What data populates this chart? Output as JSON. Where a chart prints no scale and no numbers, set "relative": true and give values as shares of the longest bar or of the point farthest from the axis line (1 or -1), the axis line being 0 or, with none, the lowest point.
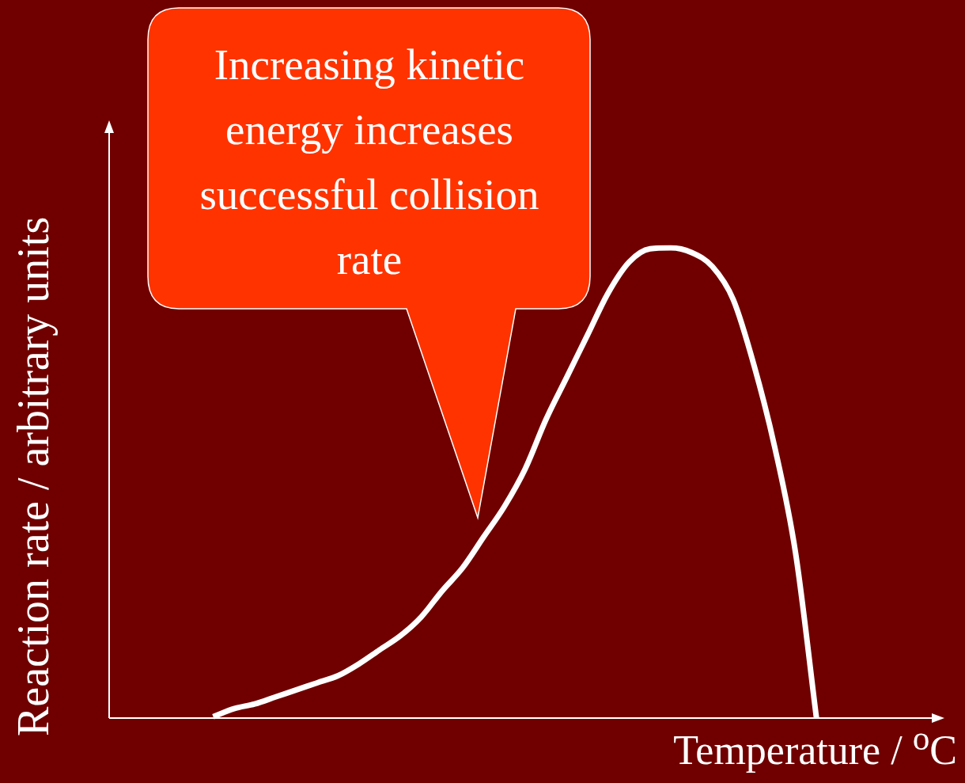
{
  "chart_data": {
    "type": "line",
    "relative": true,
    "xlabel": "Temperature / $^{o}$C",
    "ylabel": "Reaction rate / arbitrary units",
    "annotations": [
      "Increasing kinetic energy increases successful collision rate"
    ],
    "marker": "none",
    "categories": [
      null,
      null,
      null,
      null,
      null,
      null,
      null,
      null,
      null,
      null,
      null,
      null,
      null,
      null,
      null,
      null,
      null,
      null,
      null,
      null,
      null,
      null,
      null,
      null,
      null,
      null,
      null,
      null,
      null,
      null,
      null,
      null,
      null,
      null,
      null,
      null,
      null,
      null,
      null,
      null,
      null
    ],
    "series": [
      {
        "color": "#ffffff",
        "values": [
          null,
          null,
          null,
          null,
          null,
          0.003,
          0.02,
          0.03,
          0.045,
          0.06,
          0.075,
          0.09,
          0.115,
          0.145,
          0.175,
          0.215,
          0.27,
          0.32,
          0.385,
          0.45,
          0.53,
          0.635,
          0.725,
          0.815,
          0.905,
          0.97,
          0.998,
          1,
          0.99,
          0.96,
          0.89,
          0.75,
          0.575,
          0.35,
          0,
          null,
          null,
          null,
          null,
          null,
          null
        ]
      }
    ]
  }
}
